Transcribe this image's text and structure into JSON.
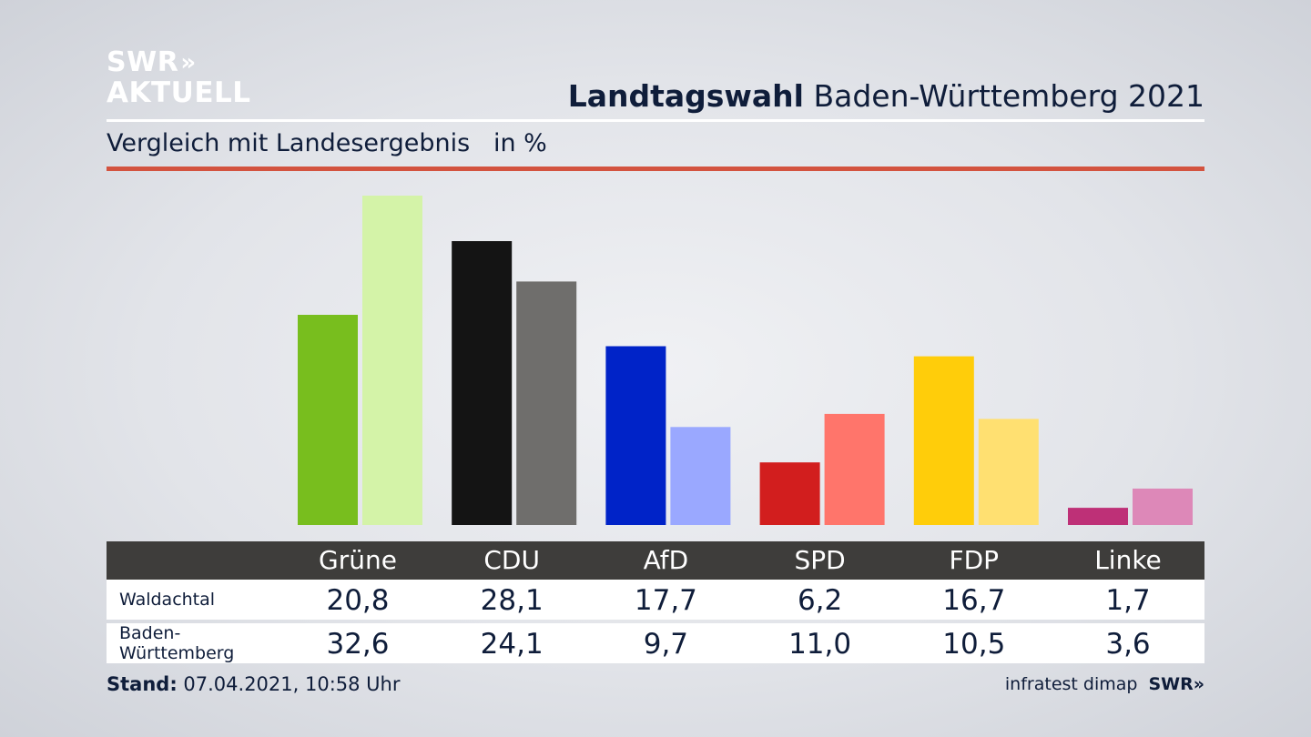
{
  "logo": {
    "line1": "SWR",
    "line1_chevrons": "»",
    "line2": "AKTUELL"
  },
  "headline": {
    "bold": "Landtagswahl",
    "rest": " Baden-Württemberg 2021"
  },
  "subtitle": "Vergleich mit Landesergebnis   in %",
  "colors": {
    "accent_rule": "#d3533f",
    "table_header": "#3e3d3b",
    "series_dark": [
      "#78be1e",
      "#141414",
      "#0023c8",
      "#d21e1e",
      "#ffcd0a",
      "#be3077"
    ],
    "series_light": [
      "#d4f3a8",
      "#6f6e6c",
      "#9aa8ff",
      "#ff756b",
      "#ffe071",
      "#dd88b8"
    ]
  },
  "chart_data": {
    "type": "bar",
    "categories": [
      "Grüne",
      "CDU",
      "AfD",
      "SPD",
      "FDP",
      "Linke"
    ],
    "series": [
      {
        "name": "Waldachtal",
        "values": [
          20.8,
          28.1,
          17.7,
          6.2,
          16.7,
          1.7
        ]
      },
      {
        "name": "Baden-Württemberg",
        "values": [
          32.6,
          24.1,
          9.7,
          11.0,
          10.5,
          3.6
        ]
      }
    ],
    "ylim": [
      0,
      32.6
    ],
    "grid": false,
    "unit": "in %"
  },
  "table": {
    "rows": [
      {
        "label": "Waldachtal",
        "values": [
          "20,8",
          "28,1",
          "17,7",
          "6,2",
          "16,7",
          "1,7"
        ]
      },
      {
        "label": "Baden-Württemberg",
        "values": [
          "32,6",
          "24,1",
          "9,7",
          "11,0",
          "10,5",
          "3,6"
        ]
      }
    ]
  },
  "footer": {
    "stand_label": "Stand:",
    "stand_value": " 07.04.2021, 10:58 Uhr",
    "source": "infratest dimap",
    "brand": "SWR»"
  }
}
